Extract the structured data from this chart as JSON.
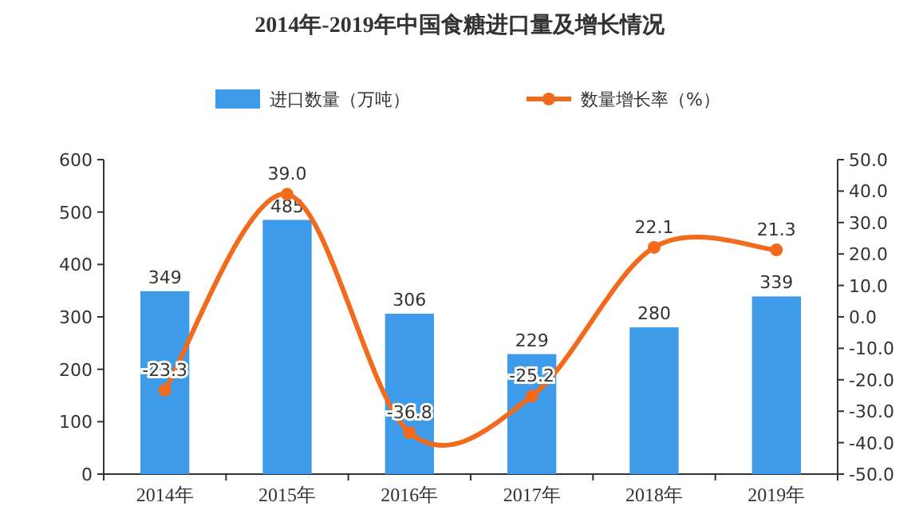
{
  "chart_data": {
    "type": "bar",
    "title": "2014年-2019年中国食糖进口量及增长情况",
    "categories": [
      "2014年",
      "2015年",
      "2016年",
      "2017年",
      "2018年",
      "2019年"
    ],
    "series": [
      {
        "name": "进口数量（万吨）",
        "color": "#3d9be9",
        "values": [
          349,
          485,
          306,
          229,
          280,
          339
        ],
        "value_labels": [
          "349",
          "485",
          "306",
          "229",
          "280",
          "339"
        ]
      },
      {
        "name": "数量增长率（%）",
        "type": "line",
        "axis": "y2",
        "color": "#f26b1d",
        "marker": "circle",
        "values": [
          -23.3,
          39.0,
          -36.8,
          -25.2,
          22.1,
          21.3
        ],
        "value_labels": [
          "-23.3",
          "39.0",
          "-36.8",
          "-25.2",
          "22.1",
          "21.3"
        ]
      }
    ],
    "ylim": [
      0,
      600
    ],
    "yticks": [
      0,
      100,
      200,
      300,
      400,
      500,
      600
    ],
    "y2lim": [
      -50,
      50
    ],
    "y2ticks": [
      {
        "value": -50,
        "label": "-50.0"
      },
      {
        "value": -40,
        "label": "-40.0"
      },
      {
        "value": -30,
        "label": "-30.0"
      },
      {
        "value": -20,
        "label": "-20.0"
      },
      {
        "value": -10,
        "label": "-10.0"
      },
      {
        "value": 0,
        "label": "0.0"
      },
      {
        "value": 10,
        "label": "10.0"
      },
      {
        "value": 20,
        "label": "20.0"
      },
      {
        "value": 30,
        "label": "30.0"
      },
      {
        "value": 40,
        "label": "40.0"
      },
      {
        "value": 50,
        "label": "50.0"
      }
    ],
    "legend": "top",
    "grid": false
  }
}
